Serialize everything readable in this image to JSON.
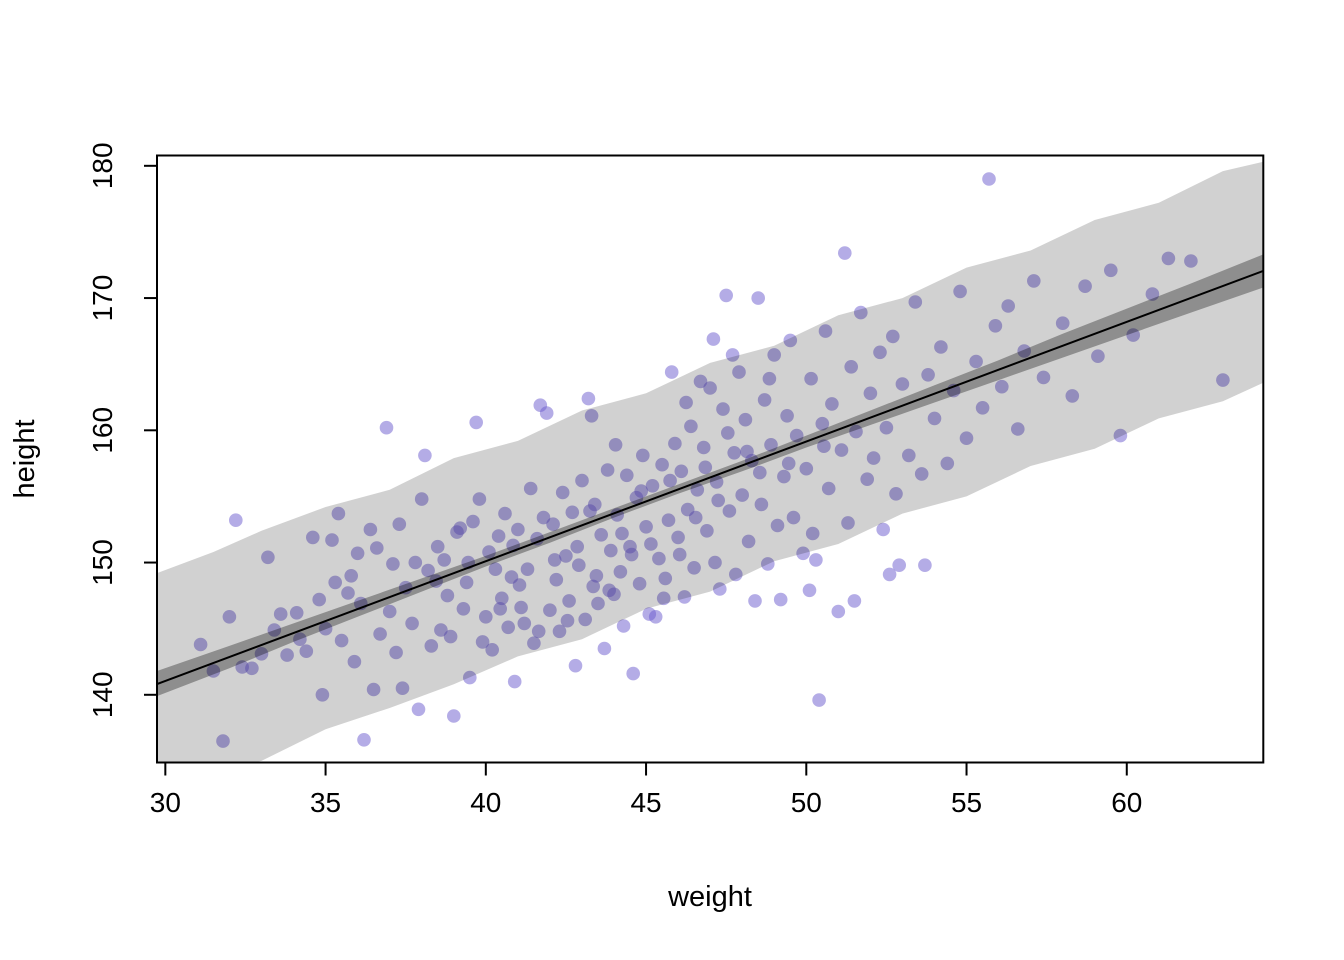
{
  "chart_data": {
    "type": "scatter",
    "title": "",
    "xlabel": "weight",
    "ylabel": "height",
    "xlim": [
      29.74,
      64.26
    ],
    "ylim": [
      134.88,
      180.78
    ],
    "xticks": [
      30,
      35,
      40,
      45,
      50,
      55,
      60
    ],
    "yticks": [
      140,
      150,
      160,
      170,
      180
    ],
    "grid": false,
    "legend": null,
    "point_color": "#6A5ACD",
    "point_alpha": 0.5,
    "point_radius": 6.8,
    "regression_line": {
      "intercept": 113.9,
      "slope": 0.905,
      "color": "#000000",
      "width": 2
    },
    "mu_band": {
      "label": "mean HPDI band",
      "color": "rgba(0,0,0,0.32)",
      "points": [
        [
          29.74,
          139.9,
          141.8
        ],
        [
          32,
          142.0,
          143.7
        ],
        [
          34,
          144.0,
          145.4
        ],
        [
          36,
          145.9,
          147.1
        ],
        [
          38,
          147.8,
          148.8
        ],
        [
          40,
          149.7,
          150.5
        ],
        [
          42,
          151.5,
          152.3
        ],
        [
          44,
          153.4,
          154.1
        ],
        [
          46,
          155.2,
          155.9
        ],
        [
          48,
          156.9,
          157.7
        ],
        [
          50,
          158.7,
          159.6
        ],
        [
          52,
          160.4,
          161.5
        ],
        [
          54,
          162.1,
          163.4
        ],
        [
          56,
          163.8,
          165.3
        ],
        [
          58,
          165.5,
          167.3
        ],
        [
          60,
          167.2,
          169.2
        ],
        [
          62,
          168.9,
          171.1
        ],
        [
          64.26,
          170.8,
          173.3
        ]
      ]
    },
    "pi_band": {
      "label": "prediction interval band",
      "color": "rgba(0,0,0,0.18)",
      "points": [
        [
          29.74,
          132.3,
          149.2
        ],
        [
          31.5,
          134.1,
          150.8
        ],
        [
          33,
          135.0,
          152.4
        ],
        [
          35,
          137.4,
          154.2
        ],
        [
          37,
          139.0,
          155.5
        ],
        [
          39,
          140.8,
          157.9
        ],
        [
          41,
          142.9,
          159.2
        ],
        [
          43,
          144.2,
          161.5
        ],
        [
          45,
          146.5,
          162.8
        ],
        [
          47,
          147.8,
          165.1
        ],
        [
          49,
          150.1,
          166.4
        ],
        [
          51,
          151.4,
          168.7
        ],
        [
          53,
          153.7,
          170.0
        ],
        [
          55,
          155.0,
          172.3
        ],
        [
          57,
          157.3,
          173.6
        ],
        [
          59,
          158.6,
          175.9
        ],
        [
          61,
          160.9,
          177.2
        ],
        [
          63,
          162.2,
          179.6
        ],
        [
          64.26,
          163.6,
          180.3
        ]
      ]
    },
    "points": [
      [
        31.1,
        143.8
      ],
      [
        31.5,
        141.8
      ],
      [
        31.8,
        136.5
      ],
      [
        32.0,
        145.9
      ],
      [
        32.2,
        153.2
      ],
      [
        32.4,
        142.1
      ],
      [
        32.7,
        142.0
      ],
      [
        33.0,
        143.1
      ],
      [
        33.2,
        150.4
      ],
      [
        33.4,
        144.9
      ],
      [
        33.6,
        146.1
      ],
      [
        33.8,
        143.0
      ],
      [
        34.1,
        146.2
      ],
      [
        34.2,
        144.2
      ],
      [
        34.4,
        143.3
      ],
      [
        34.6,
        151.9
      ],
      [
        34.8,
        147.2
      ],
      [
        34.9,
        140.0
      ],
      [
        35.0,
        145.0
      ],
      [
        35.2,
        151.7
      ],
      [
        35.3,
        148.5
      ],
      [
        35.4,
        153.7
      ],
      [
        35.5,
        144.1
      ],
      [
        35.7,
        147.7
      ],
      [
        35.8,
        149.0
      ],
      [
        35.9,
        142.5
      ],
      [
        36.0,
        150.7
      ],
      [
        36.1,
        146.9
      ],
      [
        36.2,
        136.6
      ],
      [
        36.4,
        152.5
      ],
      [
        36.5,
        140.4
      ],
      [
        36.6,
        151.1
      ],
      [
        36.7,
        144.6
      ],
      [
        36.9,
        160.2
      ],
      [
        37.0,
        146.3
      ],
      [
        37.1,
        149.9
      ],
      [
        37.2,
        143.2
      ],
      [
        37.3,
        152.9
      ],
      [
        37.4,
        140.5
      ],
      [
        37.5,
        148.1
      ],
      [
        37.7,
        145.4
      ],
      [
        37.8,
        150.0
      ],
      [
        37.9,
        138.9
      ],
      [
        38.0,
        154.8
      ],
      [
        38.1,
        158.1
      ],
      [
        38.2,
        149.4
      ],
      [
        38.3,
        143.7
      ],
      [
        38.45,
        148.6
      ],
      [
        38.5,
        151.2
      ],
      [
        38.6,
        144.9
      ],
      [
        38.7,
        150.2
      ],
      [
        38.8,
        147.5
      ],
      [
        38.9,
        144.4
      ],
      [
        39.0,
        138.4
      ],
      [
        39.1,
        152.3
      ],
      [
        39.2,
        152.6
      ],
      [
        39.3,
        146.5
      ],
      [
        39.4,
        148.5
      ],
      [
        39.45,
        150.0
      ],
      [
        39.5,
        141.3
      ],
      [
        39.6,
        153.1
      ],
      [
        39.7,
        160.6
      ],
      [
        39.8,
        154.8
      ],
      [
        39.9,
        144.0
      ],
      [
        40.0,
        145.9
      ],
      [
        40.1,
        150.8
      ],
      [
        40.2,
        143.4
      ],
      [
        40.3,
        149.5
      ],
      [
        40.4,
        152.0
      ],
      [
        40.45,
        146.5
      ],
      [
        40.5,
        147.3
      ],
      [
        40.6,
        153.7
      ],
      [
        40.7,
        145.1
      ],
      [
        40.8,
        148.9
      ],
      [
        40.85,
        151.3
      ],
      [
        40.9,
        141.0
      ],
      [
        41.0,
        152.5
      ],
      [
        41.05,
        148.3
      ],
      [
        41.1,
        146.6
      ],
      [
        41.2,
        145.4
      ],
      [
        41.3,
        149.5
      ],
      [
        41.4,
        155.6
      ],
      [
        41.5,
        143.9
      ],
      [
        41.6,
        151.8
      ],
      [
        41.65,
        144.8
      ],
      [
        41.7,
        161.9
      ],
      [
        41.8,
        153.4
      ],
      [
        41.9,
        161.3
      ],
      [
        42.0,
        146.4
      ],
      [
        42.1,
        152.9
      ],
      [
        42.15,
        150.2
      ],
      [
        42.2,
        148.7
      ],
      [
        42.3,
        144.8
      ],
      [
        42.4,
        155.3
      ],
      [
        42.5,
        150.5
      ],
      [
        42.55,
        145.6
      ],
      [
        42.6,
        147.1
      ],
      [
        42.7,
        153.8
      ],
      [
        42.8,
        142.2
      ],
      [
        42.85,
        151.2
      ],
      [
        42.9,
        149.8
      ],
      [
        43.0,
        156.2
      ],
      [
        43.1,
        145.7
      ],
      [
        43.2,
        162.4
      ],
      [
        43.25,
        153.9
      ],
      [
        43.3,
        161.1
      ],
      [
        43.35,
        148.2
      ],
      [
        43.4,
        154.4
      ],
      [
        43.45,
        149.0
      ],
      [
        43.5,
        146.9
      ],
      [
        43.6,
        152.1
      ],
      [
        43.7,
        143.5
      ],
      [
        43.8,
        157.0
      ],
      [
        43.85,
        147.9
      ],
      [
        43.9,
        150.9
      ],
      [
        44.0,
        147.6
      ],
      [
        44.05,
        158.9
      ],
      [
        44.1,
        153.6
      ],
      [
        44.2,
        149.3
      ],
      [
        44.25,
        152.2
      ],
      [
        44.3,
        145.2
      ],
      [
        44.4,
        156.6
      ],
      [
        44.5,
        151.2
      ],
      [
        44.55,
        150.6
      ],
      [
        44.6,
        141.6
      ],
      [
        44.7,
        154.9
      ],
      [
        44.8,
        148.4
      ],
      [
        44.85,
        155.4
      ],
      [
        44.9,
        158.1
      ],
      [
        45.0,
        152.7
      ],
      [
        45.1,
        146.1
      ],
      [
        45.15,
        151.4
      ],
      [
        45.2,
        155.8
      ],
      [
        45.3,
        145.9
      ],
      [
        45.4,
        150.3
      ],
      [
        45.5,
        157.4
      ],
      [
        45.55,
        147.3
      ],
      [
        45.6,
        148.8
      ],
      [
        45.7,
        153.2
      ],
      [
        45.75,
        156.2
      ],
      [
        45.8,
        164.4
      ],
      [
        45.9,
        159.0
      ],
      [
        46.0,
        151.9
      ],
      [
        46.05,
        150.6
      ],
      [
        46.1,
        156.9
      ],
      [
        46.2,
        147.4
      ],
      [
        46.25,
        162.1
      ],
      [
        46.3,
        154.0
      ],
      [
        46.4,
        160.3
      ],
      [
        46.5,
        149.6
      ],
      [
        46.55,
        153.4
      ],
      [
        46.6,
        155.5
      ],
      [
        46.7,
        163.7
      ],
      [
        46.8,
        158.7
      ],
      [
        46.85,
        157.2
      ],
      [
        46.9,
        152.4
      ],
      [
        47.0,
        163.2
      ],
      [
        47.1,
        166.9
      ],
      [
        47.15,
        150.0
      ],
      [
        47.2,
        156.1
      ],
      [
        47.25,
        154.7
      ],
      [
        47.3,
        148.0
      ],
      [
        47.4,
        161.6
      ],
      [
        47.5,
        170.2
      ],
      [
        47.55,
        159.8
      ],
      [
        47.6,
        153.9
      ],
      [
        47.7,
        165.7
      ],
      [
        47.75,
        158.3
      ],
      [
        47.8,
        149.1
      ],
      [
        47.9,
        164.4
      ],
      [
        48.0,
        155.1
      ],
      [
        48.1,
        160.8
      ],
      [
        48.15,
        158.4
      ],
      [
        48.2,
        151.6
      ],
      [
        48.3,
        157.7
      ],
      [
        48.4,
        147.1
      ],
      [
        48.5,
        170.0
      ],
      [
        48.55,
        156.8
      ],
      [
        48.6,
        154.4
      ],
      [
        48.7,
        162.3
      ],
      [
        48.8,
        149.9
      ],
      [
        48.85,
        163.9
      ],
      [
        48.9,
        158.9
      ],
      [
        49.0,
        165.7
      ],
      [
        49.1,
        152.8
      ],
      [
        49.2,
        147.2
      ],
      [
        49.3,
        156.5
      ],
      [
        49.4,
        161.1
      ],
      [
        49.45,
        157.5
      ],
      [
        49.5,
        166.8
      ],
      [
        49.6,
        153.4
      ],
      [
        49.7,
        159.6
      ],
      [
        49.9,
        150.7
      ],
      [
        50.0,
        157.1
      ],
      [
        50.1,
        147.9
      ],
      [
        50.15,
        163.9
      ],
      [
        50.2,
        152.2
      ],
      [
        50.3,
        150.2
      ],
      [
        50.4,
        139.6
      ],
      [
        50.5,
        160.5
      ],
      [
        50.55,
        158.8
      ],
      [
        50.6,
        167.5
      ],
      [
        50.7,
        155.6
      ],
      [
        50.8,
        162.0
      ],
      [
        51.0,
        146.3
      ],
      [
        51.1,
        158.5
      ],
      [
        51.2,
        173.4
      ],
      [
        51.3,
        153.0
      ],
      [
        51.4,
        164.8
      ],
      [
        51.5,
        147.1
      ],
      [
        51.55,
        159.9
      ],
      [
        51.7,
        168.9
      ],
      [
        51.9,
        156.3
      ],
      [
        52.0,
        162.8
      ],
      [
        52.1,
        157.9
      ],
      [
        52.3,
        165.9
      ],
      [
        52.4,
        152.5
      ],
      [
        52.5,
        160.2
      ],
      [
        52.6,
        149.1
      ],
      [
        52.7,
        167.1
      ],
      [
        52.8,
        155.2
      ],
      [
        52.9,
        149.8
      ],
      [
        53.0,
        163.5
      ],
      [
        53.2,
        158.1
      ],
      [
        53.4,
        169.7
      ],
      [
        53.6,
        156.7
      ],
      [
        53.7,
        149.8
      ],
      [
        53.8,
        164.2
      ],
      [
        54.0,
        160.9
      ],
      [
        54.2,
        166.3
      ],
      [
        54.4,
        157.5
      ],
      [
        54.6,
        163.0
      ],
      [
        54.8,
        170.5
      ],
      [
        55.0,
        159.4
      ],
      [
        55.3,
        165.2
      ],
      [
        55.5,
        161.7
      ],
      [
        55.7,
        179.0
      ],
      [
        55.9,
        167.9
      ],
      [
        56.1,
        163.3
      ],
      [
        56.3,
        169.4
      ],
      [
        56.6,
        160.1
      ],
      [
        56.8,
        166.0
      ],
      [
        57.1,
        171.3
      ],
      [
        57.4,
        164.0
      ],
      [
        58.0,
        168.1
      ],
      [
        58.3,
        162.6
      ],
      [
        58.7,
        170.9
      ],
      [
        59.1,
        165.6
      ],
      [
        59.5,
        172.1
      ],
      [
        59.8,
        159.6
      ],
      [
        60.2,
        167.2
      ],
      [
        60.8,
        170.3
      ],
      [
        61.3,
        173.0
      ],
      [
        62.0,
        172.8
      ],
      [
        63.0,
        163.8
      ]
    ]
  },
  "axes": {
    "x_title": "weight",
    "y_title": "height",
    "x_tick_labels": [
      "30",
      "35",
      "40",
      "45",
      "50",
      "55",
      "60"
    ],
    "y_tick_labels": [
      "140",
      "150",
      "160",
      "170",
      "180"
    ]
  },
  "colors": {
    "background": "#ffffff",
    "box_stroke": "#000000",
    "point_fill": "#6A5ACD"
  }
}
